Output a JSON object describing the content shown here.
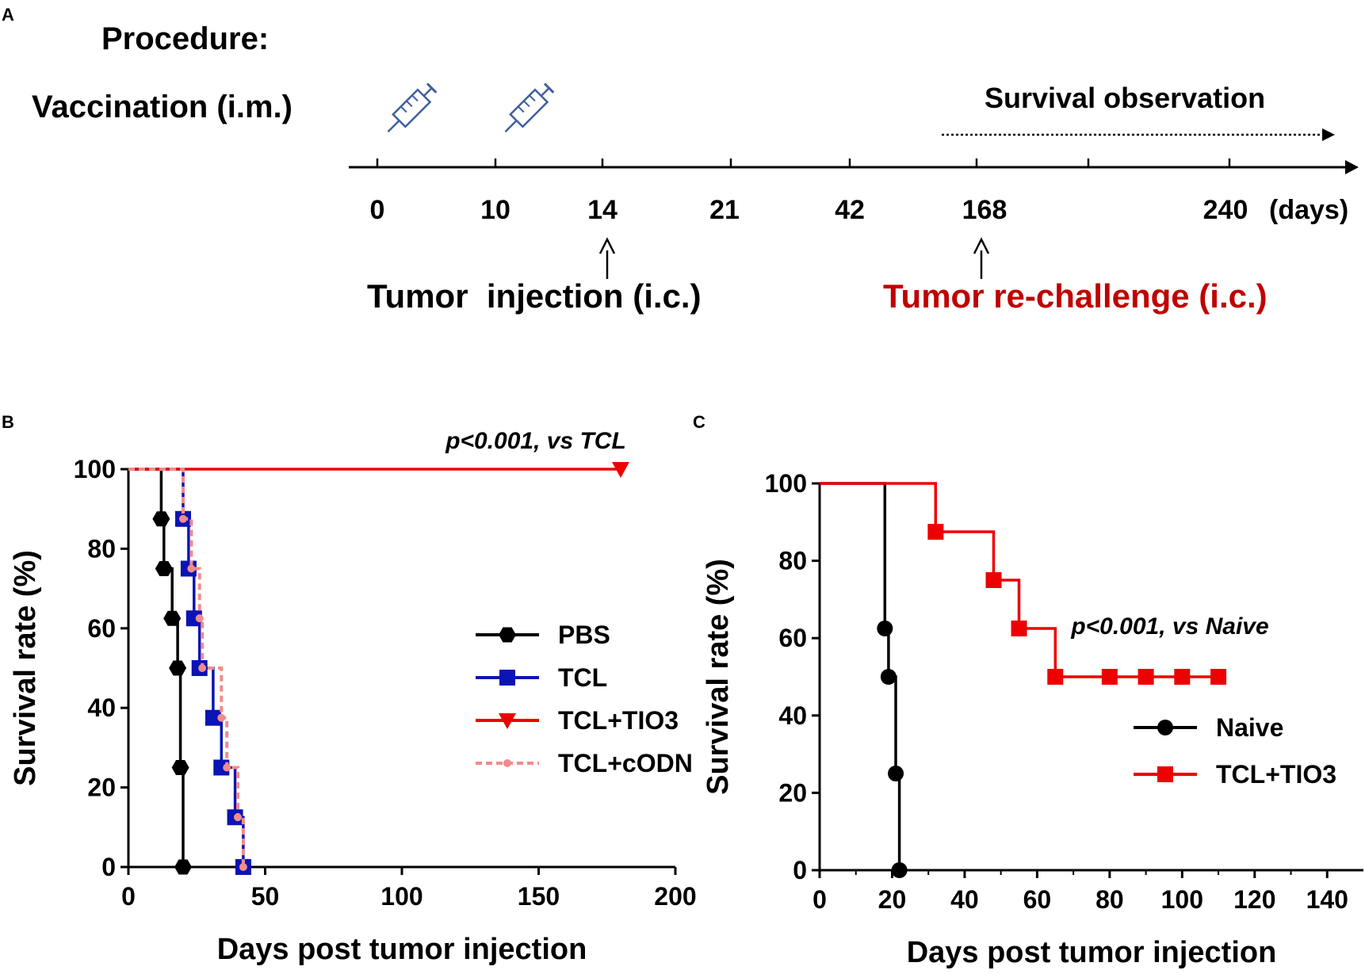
{
  "panel_a": {
    "label": "A",
    "procedure_title": "Procedure:",
    "vaccination_label": "Vaccination (i.m.)",
    "survival_label": "Survival observation",
    "ticks": [
      "0",
      "10",
      "14",
      "21",
      "42",
      "168",
      "240"
    ],
    "unit": "(days)",
    "tumor_injection": "Tumor  injection (i.c.)",
    "tumor_rechallenge": "Tumor re-challenge (i.c.)",
    "rechallenge_color": "#c00000"
  },
  "chart_data": [
    {
      "panel": "B",
      "type": "line",
      "title": "",
      "annotation": "p<0.001, vs TCL",
      "xlabel": "Days post tumor injection",
      "ylabel": "Survival rate (%)",
      "xlim": [
        0,
        200
      ],
      "ylim": [
        0,
        100
      ],
      "xticks": [
        "0",
        "50",
        "100",
        "150",
        "200"
      ],
      "yticks": [
        "0",
        "20",
        "40",
        "60",
        "80",
        "100"
      ],
      "legend_position": "right",
      "series": [
        {
          "name": "PBS",
          "color": "#000000",
          "marker": "hexagon",
          "dash": false,
          "points": [
            [
              0,
              100
            ],
            [
              12,
              100
            ],
            [
              12,
              87.5
            ],
            [
              13,
              87.5
            ],
            [
              13,
              75
            ],
            [
              16,
              75
            ],
            [
              16,
              62.5
            ],
            [
              18,
              62.5
            ],
            [
              18,
              50
            ],
            [
              19,
              50
            ],
            [
              19,
              25
            ],
            [
              20,
              25
            ],
            [
              20,
              0
            ]
          ],
          "markers": [
            [
              12,
              87.5
            ],
            [
              13,
              75
            ],
            [
              16,
              62.5
            ],
            [
              18,
              50
            ],
            [
              19,
              25
            ],
            [
              20,
              0
            ]
          ]
        },
        {
          "name": "TCL",
          "color": "#0b14b4",
          "marker": "square",
          "dash": false,
          "points": [
            [
              0,
              100
            ],
            [
              20,
              100
            ],
            [
              20,
              87.5
            ],
            [
              22,
              87.5
            ],
            [
              22,
              75
            ],
            [
              24,
              75
            ],
            [
              24,
              62.5
            ],
            [
              26,
              62.5
            ],
            [
              26,
              50
            ],
            [
              31,
              50
            ],
            [
              31,
              37.5
            ],
            [
              34,
              37.5
            ],
            [
              34,
              25
            ],
            [
              39,
              25
            ],
            [
              39,
              12.5
            ],
            [
              42,
              12.5
            ],
            [
              42,
              0
            ]
          ],
          "markers": [
            [
              20,
              87.5
            ],
            [
              22,
              75
            ],
            [
              24,
              62.5
            ],
            [
              26,
              50
            ],
            [
              31,
              37.5
            ],
            [
              34,
              25
            ],
            [
              39,
              12.5
            ],
            [
              42,
              0
            ]
          ]
        },
        {
          "name": "TCL+TIO3",
          "color": "#ee0000",
          "marker": "triangle-down",
          "dash": false,
          "points": [
            [
              0,
              100
            ],
            [
              180,
              100
            ]
          ],
          "markers": [
            [
              180,
              100
            ]
          ]
        },
        {
          "name": "TCL+cODN",
          "color": "#f28b8b",
          "marker": "dot",
          "dash": true,
          "points": [
            [
              0,
              100
            ],
            [
              20,
              100
            ],
            [
              20,
              87.5
            ],
            [
              23,
              87.5
            ],
            [
              23,
              75
            ],
            [
              26,
              75
            ],
            [
              26,
              62.5
            ],
            [
              27,
              62.5
            ],
            [
              27,
              50
            ],
            [
              34,
              50
            ],
            [
              34,
              37.5
            ],
            [
              36,
              37.5
            ],
            [
              36,
              25
            ],
            [
              40,
              25
            ],
            [
              40,
              12.5
            ],
            [
              42,
              12.5
            ],
            [
              42,
              0
            ]
          ],
          "markers": [
            [
              20,
              87.5
            ],
            [
              23,
              75
            ],
            [
              26,
              62.5
            ],
            [
              27,
              50
            ],
            [
              34,
              37.5
            ],
            [
              36,
              25
            ],
            [
              40,
              12.5
            ],
            [
              42,
              0
            ]
          ]
        }
      ]
    },
    {
      "panel": "C",
      "type": "line",
      "title": "",
      "annotation": "p<0.001, vs Naive",
      "xlabel": "Days post tumor injection",
      "ylabel": "Survival rate (%)",
      "xlim": [
        0,
        150
      ],
      "ylim": [
        0,
        100
      ],
      "xticks": [
        "0",
        "20",
        "40",
        "60",
        "80",
        "100",
        "120",
        "140"
      ],
      "yticks": [
        "0",
        "20",
        "40",
        "60",
        "80",
        "100"
      ],
      "legend_position": "right",
      "series": [
        {
          "name": "Naive",
          "color": "#000000",
          "marker": "circle",
          "dash": false,
          "points": [
            [
              0,
              100
            ],
            [
              18,
              100
            ],
            [
              18,
              62.5
            ],
            [
              19,
              62.5
            ],
            [
              19,
              50
            ],
            [
              21,
              50
            ],
            [
              21,
              25
            ],
            [
              22,
              25
            ],
            [
              22,
              0
            ]
          ],
          "markers": [
            [
              18,
              62.5
            ],
            [
              19,
              50
            ],
            [
              21,
              25
            ],
            [
              22,
              0
            ]
          ]
        },
        {
          "name": "TCL+TIO3",
          "color": "#ee0000",
          "marker": "square",
          "dash": false,
          "points": [
            [
              0,
              100
            ],
            [
              32,
              100
            ],
            [
              32,
              87.5
            ],
            [
              48,
              87.5
            ],
            [
              48,
              75
            ],
            [
              55,
              75
            ],
            [
              55,
              62.5
            ],
            [
              65,
              62.5
            ],
            [
              65,
              50
            ],
            [
              110,
              50
            ]
          ],
          "markers": [
            [
              32,
              87.5
            ],
            [
              48,
              75
            ],
            [
              55,
              62.5
            ],
            [
              65,
              50
            ],
            [
              80,
              50
            ],
            [
              90,
              50
            ],
            [
              100,
              50
            ],
            [
              110,
              50
            ]
          ]
        }
      ]
    }
  ]
}
